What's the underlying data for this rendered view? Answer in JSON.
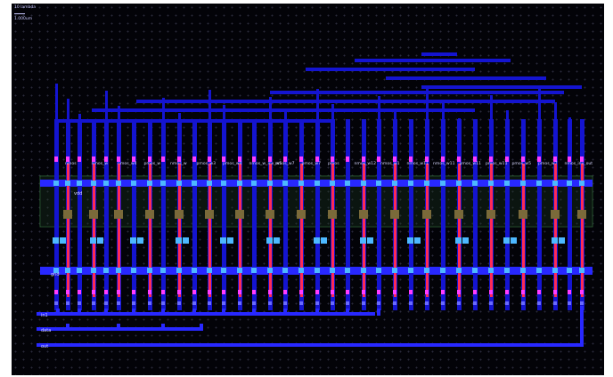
{
  "scale": {
    "line1": "10 lambda",
    "line2": "1.000um"
  },
  "nets": {
    "vdd": "vdd",
    "gnd": "gnd",
    "in1": "in1",
    "data": "data",
    "out": "out"
  },
  "device_labels": [
    "nmos",
    "nmos_w",
    "nmos_w4",
    "pmos_w",
    "nmos_w",
    "pmos_w3",
    "pmos_w4",
    "nmos_w_inv_w5",
    "nmos_w7",
    "pmos_w7",
    "pmos",
    "nmos_w12",
    "nmos_w1",
    "nmos_w11",
    "nmos_w11",
    "pmos_w11",
    "pmos_w11",
    "pmos_w5",
    "pmos_w7",
    "nmos_inv_out"
  ],
  "colors": {
    "background": "#030308",
    "metal1": "#2828ff",
    "metal2": "#1414d0",
    "poly": "#ff2a55",
    "diff": "#7a6a3a",
    "contact": "#4db8ff",
    "via": "#ff3cff",
    "pdiff_box": "#1d3a20"
  }
}
